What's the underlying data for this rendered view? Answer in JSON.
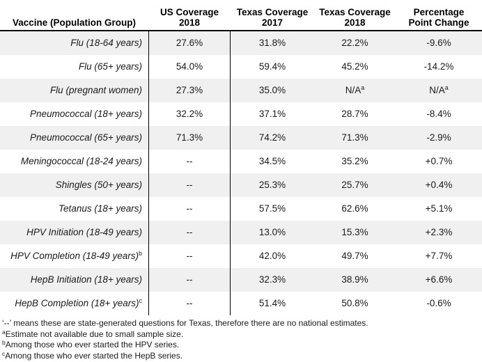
{
  "colors": {
    "row_stripe": "#f0f0f0",
    "border": "#000000",
    "text": "#1a1a1a"
  },
  "table": {
    "headers": [
      {
        "line1": "Vaccine (Population Group)",
        "line2": ""
      },
      {
        "line1": "US Coverage",
        "line2": "2018"
      },
      {
        "line1": "Texas Coverage",
        "line2": "2017"
      },
      {
        "line1": "Texas Coverage",
        "line2": "2018"
      },
      {
        "line1": "Percentage",
        "line2": "Point Change"
      }
    ],
    "rows": [
      {
        "cells": [
          {
            "t": "Flu (18-64 years)",
            "s": ""
          },
          {
            "t": "27.6%",
            "s": ""
          },
          {
            "t": "31.8%",
            "s": ""
          },
          {
            "t": "22.2%",
            "s": ""
          },
          {
            "t": "-9.6%",
            "s": ""
          }
        ]
      },
      {
        "cells": [
          {
            "t": "Flu (65+ years)",
            "s": ""
          },
          {
            "t": "54.0%",
            "s": ""
          },
          {
            "t": "59.4%",
            "s": ""
          },
          {
            "t": "45.2%",
            "s": ""
          },
          {
            "t": "-14.2%",
            "s": ""
          }
        ]
      },
      {
        "cells": [
          {
            "t": "Flu (pregnant women)",
            "s": ""
          },
          {
            "t": "27.3%",
            "s": ""
          },
          {
            "t": "35.0%",
            "s": ""
          },
          {
            "t": "N/A",
            "s": "a"
          },
          {
            "t": "N/A",
            "s": "a"
          }
        ]
      },
      {
        "cells": [
          {
            "t": "Pneumococcal (18+ years)",
            "s": ""
          },
          {
            "t": "32.2%",
            "s": ""
          },
          {
            "t": "37.1%",
            "s": ""
          },
          {
            "t": "28.7%",
            "s": ""
          },
          {
            "t": "-8.4%",
            "s": ""
          }
        ]
      },
      {
        "cells": [
          {
            "t": "Pneumococcal (65+ years)",
            "s": ""
          },
          {
            "t": "71.3%",
            "s": ""
          },
          {
            "t": "74.2%",
            "s": ""
          },
          {
            "t": "71.3%",
            "s": ""
          },
          {
            "t": "-2.9%",
            "s": ""
          }
        ]
      },
      {
        "cells": [
          {
            "t": "Meningococcal (18-24 years)",
            "s": ""
          },
          {
            "t": "--",
            "s": ""
          },
          {
            "t": "34.5%",
            "s": ""
          },
          {
            "t": "35.2%",
            "s": ""
          },
          {
            "t": "+0.7%",
            "s": ""
          }
        ]
      },
      {
        "cells": [
          {
            "t": "Shingles (50+ years)",
            "s": ""
          },
          {
            "t": "--",
            "s": ""
          },
          {
            "t": "25.3%",
            "s": ""
          },
          {
            "t": "25.7%",
            "s": ""
          },
          {
            "t": "+0.4%",
            "s": ""
          }
        ]
      },
      {
        "cells": [
          {
            "t": "Tetanus (18+ years)",
            "s": ""
          },
          {
            "t": "--",
            "s": ""
          },
          {
            "t": "57.5%",
            "s": ""
          },
          {
            "t": "62.6%",
            "s": ""
          },
          {
            "t": "+5.1%",
            "s": ""
          }
        ]
      },
      {
        "cells": [
          {
            "t": "HPV Initiation (18-49 years)",
            "s": ""
          },
          {
            "t": "--",
            "s": ""
          },
          {
            "t": "13.0%",
            "s": ""
          },
          {
            "t": "15.3%",
            "s": ""
          },
          {
            "t": "+2.3%",
            "s": ""
          }
        ]
      },
      {
        "cells": [
          {
            "t": "HPV Completion (18-49 years)",
            "s": "b"
          },
          {
            "t": "--",
            "s": ""
          },
          {
            "t": "42.0%",
            "s": ""
          },
          {
            "t": "49.7%",
            "s": ""
          },
          {
            "t": "+7.7%",
            "s": ""
          }
        ]
      },
      {
        "cells": [
          {
            "t": "HepB Initiation (18+ years)",
            "s": ""
          },
          {
            "t": "--",
            "s": ""
          },
          {
            "t": "32.3%",
            "s": ""
          },
          {
            "t": "38.9%",
            "s": ""
          },
          {
            "t": "+6.6%",
            "s": ""
          }
        ]
      },
      {
        "cells": [
          {
            "t": "HepB Completion (18+ years)",
            "s": "c"
          },
          {
            "t": "--",
            "s": ""
          },
          {
            "t": "51.4%",
            "s": ""
          },
          {
            "t": "50.8%",
            "s": ""
          },
          {
            "t": "-0.6%",
            "s": ""
          }
        ]
      }
    ]
  },
  "footnotes": [
    {
      "sup": "",
      "text": "‘--’ means these are state-generated questions for Texas, therefore there are no national estimates."
    },
    {
      "sup": "a",
      "text": "Estimate not available due to small sample size."
    },
    {
      "sup": "b",
      "text": "Among those who ever started the HPV series."
    },
    {
      "sup": "c",
      "text": "Among those who ever started the HepB series."
    }
  ]
}
